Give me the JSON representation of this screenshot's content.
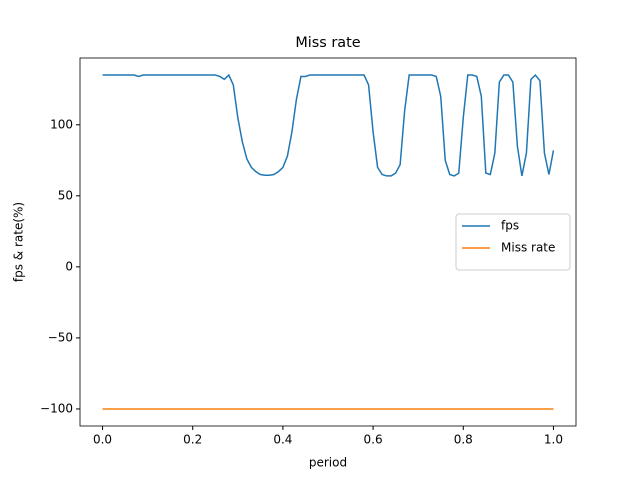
{
  "chart_data": {
    "type": "line",
    "title": "Miss rate",
    "xlabel": "period",
    "ylabel": "fps & rate(%)",
    "x": [
      0,
      0.01,
      0.02,
      0.03,
      0.04,
      0.05,
      0.06,
      0.07,
      0.08,
      0.09,
      0.1,
      0.11,
      0.12,
      0.13,
      0.14,
      0.15,
      0.16,
      0.17,
      0.18,
      0.19,
      0.2,
      0.21,
      0.22,
      0.23,
      0.24,
      0.25,
      0.26,
      0.27,
      0.28,
      0.29,
      0.3,
      0.31,
      0.32,
      0.33,
      0.34,
      0.35,
      0.36,
      0.37,
      0.38,
      0.39,
      0.4,
      0.41,
      0.42,
      0.43,
      0.44,
      0.45,
      0.46,
      0.47,
      0.48,
      0.49,
      0.5,
      0.51,
      0.52,
      0.53,
      0.54,
      0.55,
      0.56,
      0.57,
      0.58,
      0.59,
      0.6,
      0.61,
      0.62,
      0.63,
      0.64,
      0.65,
      0.66,
      0.67,
      0.68,
      0.69,
      0.7,
      0.71,
      0.72,
      0.73,
      0.74,
      0.75,
      0.76,
      0.77,
      0.78,
      0.79,
      0.8,
      0.81,
      0.82,
      0.83,
      0.84,
      0.85,
      0.86,
      0.87,
      0.88,
      0.89,
      0.9,
      0.91,
      0.92,
      0.93,
      0.94,
      0.95,
      0.96,
      0.97,
      0.98,
      0.99,
      1
    ],
    "series": [
      {
        "name": "fps",
        "color": "#1f77b4",
        "values": [
          135,
          135,
          135,
          135,
          135,
          135,
          135,
          135,
          134,
          135,
          135,
          135,
          135,
          135,
          135,
          135,
          135,
          135,
          135,
          135,
          135,
          135,
          135,
          135,
          135,
          135,
          134,
          132,
          135,
          128,
          105,
          88,
          76,
          70,
          67,
          65,
          64.5,
          64.5,
          65,
          67,
          70,
          78,
          95,
          118,
          134,
          134,
          135,
          135,
          135,
          135,
          135,
          135,
          135,
          135,
          135,
          135,
          135,
          135,
          135,
          128,
          95,
          70,
          65,
          64,
          64,
          66,
          72,
          110,
          135,
          135,
          135,
          135,
          135,
          135,
          134,
          120,
          75,
          65,
          64,
          66,
          105,
          135,
          135,
          134,
          120,
          66,
          65,
          80,
          130,
          135,
          135,
          130,
          85,
          64,
          80,
          132,
          135,
          131,
          80,
          65,
          82
        ]
      },
      {
        "name": "Miss rate",
        "color": "#ff7f0e",
        "values": [
          -100,
          -100,
          -100,
          -100,
          -100,
          -100,
          -100,
          -100,
          -100,
          -100,
          -100,
          -100,
          -100,
          -100,
          -100,
          -100,
          -100,
          -100,
          -100,
          -100,
          -100,
          -100,
          -100,
          -100,
          -100,
          -100,
          -100,
          -100,
          -100,
          -100,
          -100,
          -100,
          -100,
          -100,
          -100,
          -100,
          -100,
          -100,
          -100,
          -100,
          -100,
          -100,
          -100,
          -100,
          -100,
          -100,
          -100,
          -100,
          -100,
          -100,
          -100,
          -100,
          -100,
          -100,
          -100,
          -100,
          -100,
          -100,
          -100,
          -100,
          -100,
          -100,
          -100,
          -100,
          -100,
          -100,
          -100,
          -100,
          -100,
          -100,
          -100,
          -100,
          -100,
          -100,
          -100,
          -100,
          -100,
          -100,
          -100,
          -100,
          -100,
          -100,
          -100,
          -100,
          -100,
          -100,
          -100,
          -100,
          -100,
          -100,
          -100,
          -100,
          -100,
          -100,
          -100,
          -100,
          -100,
          -100,
          -100,
          -100,
          -100
        ]
      }
    ],
    "xlim": [
      -0.05,
      1.05
    ],
    "ylim": [
      -112,
      147
    ],
    "xticks": [
      {
        "value": 0,
        "label": "0.0"
      },
      0.2,
      0.4,
      0.6,
      0.8,
      {
        "value": 1,
        "label": "1.0"
      }
    ],
    "yticks": [
      {
        "value": -100,
        "label": "−100"
      },
      {
        "value": -50,
        "label": "−50"
      },
      0,
      50,
      100
    ],
    "legend": "center right"
  }
}
